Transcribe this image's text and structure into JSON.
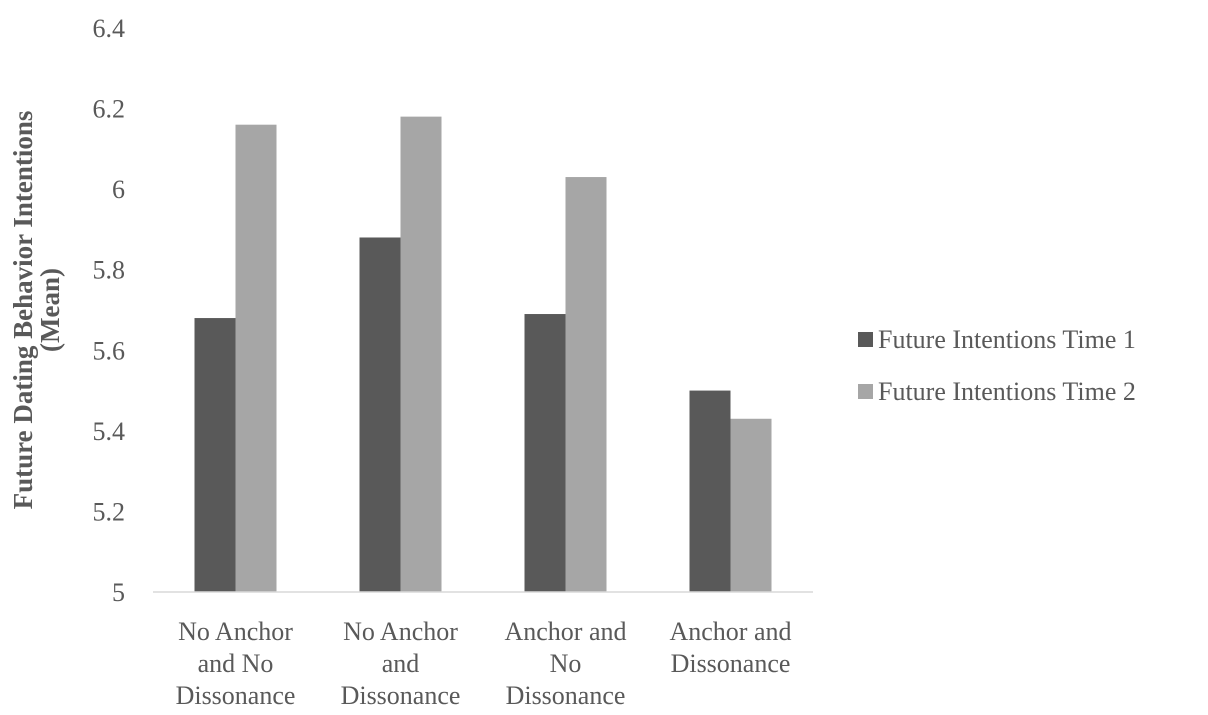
{
  "chart_data": {
    "type": "bar",
    "title": "",
    "xlabel": "",
    "ylabel": "Future Dating Behavior Intentions (Mean)",
    "ylabel_lines": [
      "Future Dating Behavior Intentions",
      "(Mean)"
    ],
    "ylim": [
      5,
      6.4
    ],
    "yticks": [
      5,
      5.2,
      5.4,
      5.6,
      5.8,
      6,
      6.2,
      6.4
    ],
    "ytick_labels": [
      "5",
      "5.2",
      "5.4",
      "5.6",
      "5.8",
      "6",
      "6.2",
      "6.4"
    ],
    "grid": false,
    "legend_position": "right",
    "categories": [
      "No Anchor and No Dissonance",
      "No Anchor and Dissonance",
      "Anchor and No Dissonance",
      "Anchor and Dissonance"
    ],
    "category_label_lines": [
      [
        "No Anchor",
        "and No",
        "Dissonance"
      ],
      [
        "No Anchor",
        "and",
        "Dissonance"
      ],
      [
        "Anchor and",
        "No",
        "Dissonance"
      ],
      [
        "Anchor and",
        "Dissonance"
      ]
    ],
    "series": [
      {
        "name": "Future Intentions Time 1",
        "color": "#595959",
        "values": [
          5.68,
          5.88,
          5.69,
          5.5
        ]
      },
      {
        "name": "Future Intentions Time 2",
        "color": "#a6a6a6",
        "values": [
          6.16,
          6.18,
          6.03,
          5.43
        ]
      }
    ]
  }
}
